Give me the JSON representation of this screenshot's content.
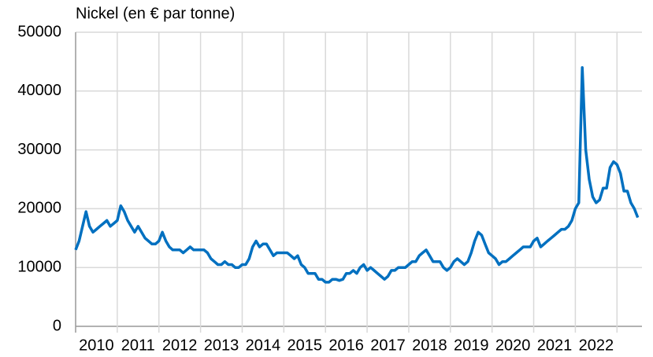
{
  "chart_data": {
    "type": "line",
    "title": "Nickel (en € par tonne)",
    "x": [
      2010.0,
      2010.083,
      2010.167,
      2010.25,
      2010.333,
      2010.417,
      2010.5,
      2010.583,
      2010.667,
      2010.75,
      2010.833,
      2010.917,
      2011.0,
      2011.083,
      2011.167,
      2011.25,
      2011.333,
      2011.417,
      2011.5,
      2011.583,
      2011.667,
      2011.75,
      2011.833,
      2011.917,
      2012.0,
      2012.083,
      2012.167,
      2012.25,
      2012.333,
      2012.417,
      2012.5,
      2012.583,
      2012.667,
      2012.75,
      2012.833,
      2012.917,
      2013.0,
      2013.083,
      2013.167,
      2013.25,
      2013.333,
      2013.417,
      2013.5,
      2013.583,
      2013.667,
      2013.75,
      2013.833,
      2013.917,
      2014.0,
      2014.083,
      2014.167,
      2014.25,
      2014.333,
      2014.417,
      2014.5,
      2014.583,
      2014.667,
      2014.75,
      2014.833,
      2014.917,
      2015.0,
      2015.083,
      2015.167,
      2015.25,
      2015.333,
      2015.417,
      2015.5,
      2015.583,
      2015.667,
      2015.75,
      2015.833,
      2015.917,
      2016.0,
      2016.083,
      2016.167,
      2016.25,
      2016.333,
      2016.417,
      2016.5,
      2016.583,
      2016.667,
      2016.75,
      2016.833,
      2016.917,
      2017.0,
      2017.083,
      2017.167,
      2017.25,
      2017.333,
      2017.417,
      2017.5,
      2017.583,
      2017.667,
      2017.75,
      2017.833,
      2017.917,
      2018.0,
      2018.083,
      2018.167,
      2018.25,
      2018.333,
      2018.417,
      2018.5,
      2018.583,
      2018.667,
      2018.75,
      2018.833,
      2018.917,
      2019.0,
      2019.083,
      2019.167,
      2019.25,
      2019.333,
      2019.417,
      2019.5,
      2019.583,
      2019.667,
      2019.75,
      2019.833,
      2019.917,
      2020.0,
      2020.083,
      2020.167,
      2020.25,
      2020.333,
      2020.417,
      2020.5,
      2020.583,
      2020.667,
      2020.75,
      2020.833,
      2020.917,
      2021.0,
      2021.083,
      2021.167,
      2021.25,
      2021.333,
      2021.417,
      2021.5,
      2021.583,
      2021.667,
      2021.75,
      2021.833,
      2021.917,
      2022.0,
      2022.083,
      2022.167,
      2022.25,
      2022.333,
      2022.417,
      2022.5,
      2022.583,
      2022.667,
      2022.75,
      2022.833,
      2022.917,
      2023.0,
      2023.083,
      2023.167,
      2023.25,
      2023.333,
      2023.417,
      2023.5
    ],
    "series": [
      {
        "name": "Nickel",
        "color": "#0070c0",
        "values": [
          13000,
          14500,
          17000,
          19500,
          17000,
          16000,
          16500,
          17000,
          17500,
          18000,
          17000,
          17500,
          18000,
          20500,
          19500,
          18000,
          17000,
          16000,
          17000,
          16000,
          15000,
          14500,
          14000,
          14000,
          14500,
          16000,
          14500,
          13500,
          13000,
          13000,
          13000,
          12500,
          13000,
          13500,
          13000,
          13000,
          13000,
          13000,
          12500,
          11500,
          11000,
          10500,
          10500,
          11000,
          10500,
          10500,
          10000,
          10000,
          10500,
          10500,
          11500,
          13500,
          14500,
          13500,
          14000,
          14000,
          13000,
          12000,
          12500,
          12500,
          12500,
          12500,
          12000,
          11500,
          12000,
          10500,
          10000,
          9000,
          9000,
          9000,
          8000,
          8000,
          7500,
          7500,
          8000,
          8000,
          7800,
          8000,
          9000,
          9000,
          9500,
          9000,
          10000,
          10500,
          9500,
          10000,
          9500,
          9000,
          8500,
          8000,
          8500,
          9500,
          9500,
          10000,
          10000,
          10000,
          10500,
          11000,
          11000,
          12000,
          12500,
          13000,
          12000,
          11000,
          11000,
          11000,
          10000,
          9500,
          10000,
          11000,
          11500,
          11000,
          10500,
          11000,
          12500,
          14500,
          16000,
          15500,
          14000,
          12500,
          12000,
          11500,
          10500,
          11000,
          11000,
          11500,
          12000,
          12500,
          13000,
          13500,
          13500,
          13500,
          14500,
          15000,
          13500,
          14000,
          14500,
          15000,
          15500,
          16000,
          16500,
          16500,
          17000,
          18000,
          20000,
          21000,
          44000,
          30000,
          25000,
          22000,
          21000,
          21500,
          23500,
          23500,
          27000,
          28000,
          27500,
          26000,
          23000,
          23000,
          21000,
          20000,
          18500
        ]
      }
    ],
    "xlim": [
      2010,
      2023.6
    ],
    "xticks": [
      2010,
      2011,
      2012,
      2013,
      2014,
      2015,
      2016,
      2017,
      2018,
      2019,
      2020,
      2021,
      2022
    ],
    "ylim": [
      0,
      50000
    ],
    "yticks": [
      0,
      10000,
      20000,
      30000,
      40000,
      50000
    ],
    "grid": true
  }
}
